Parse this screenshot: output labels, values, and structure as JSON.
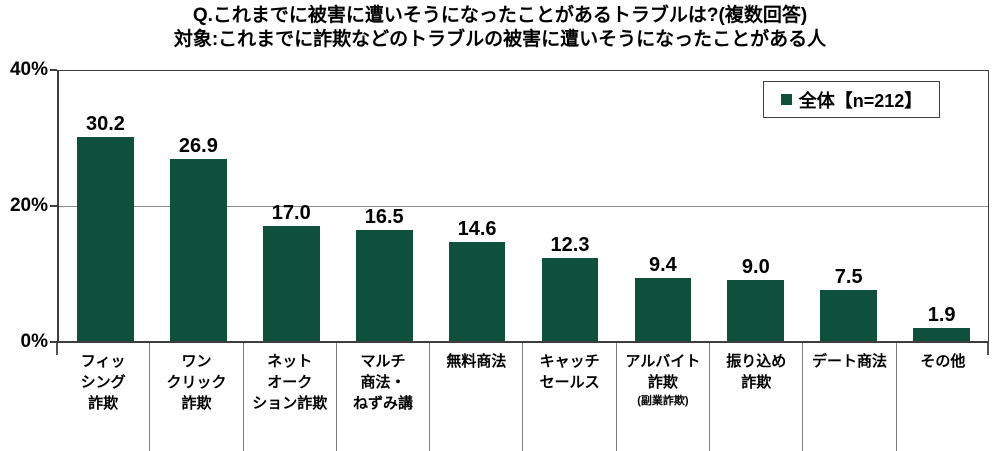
{
  "title": {
    "line1": "Q.これまでに被害に遭いそうになったことがあるトラブルは?(複数回答)",
    "line2": "対象:これまでに詐欺などのトラブルの被害に遭いそうになったことがある人"
  },
  "legend": {
    "label": "全体【n=212】",
    "marker_color": "#0e503b"
  },
  "chart_data": {
    "type": "bar",
    "title": "Q.これまでに被害に遭いそうになったことがあるトラブルは?(複数回答)",
    "subtitle": "対象:これまでに詐欺などのトラブルの被害に遭いそうになったことがある人",
    "series": [
      {
        "name": "全体【n=212】",
        "values": [
          30.2,
          26.9,
          17.0,
          16.5,
          14.6,
          12.3,
          9.4,
          9.0,
          7.5,
          1.9
        ]
      }
    ],
    "categories": [
      "フィッシング詐欺",
      "ワンクリック詐欺",
      "ネットオークション詐欺",
      "マルチ商法・ねずみ講",
      "無料商法",
      "キャッチセールス",
      "アルバイト詐欺(副業詐欺)",
      "振り込め詐欺",
      "デート商法",
      "その他"
    ],
    "category_display_lines": [
      [
        "フィッ",
        "シング",
        "詐欺"
      ],
      [
        "ワン",
        "クリック",
        "詐欺"
      ],
      [
        "ネット",
        "オーク",
        "ション詐欺"
      ],
      [
        "マルチ",
        "商法・",
        "ねずみ講"
      ],
      [
        "無料商法"
      ],
      [
        "キャッチ",
        "セールス"
      ],
      [
        "アルバイト",
        "詐欺",
        "(副業詐欺)"
      ],
      [
        "振り込め",
        "詐欺"
      ],
      [
        "デート商法"
      ],
      [
        "その他"
      ]
    ],
    "value_labels": [
      "30.2",
      "26.9",
      "17.0",
      "16.5",
      "14.6",
      "12.3",
      "9.4",
      "9.0",
      "7.5",
      "1.9"
    ],
    "xlabel": "",
    "ylabel": "",
    "ylim": [
      0,
      40
    ],
    "y_ticks": [
      "40%",
      "20%",
      "0%"
    ],
    "gridlines_at": [
      20
    ],
    "grid": true,
    "legend_position": "top-right-inside",
    "bar_color": "#0e503b"
  }
}
